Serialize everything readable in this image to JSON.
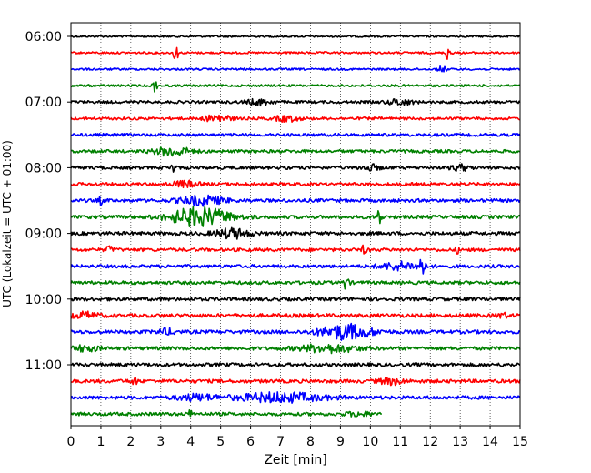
{
  "chart_data": {
    "type": "line",
    "title": "",
    "xlabel": "Zeit  [min]",
    "ylabel": "UTC (Lokalzeit = UTC + 01:00)",
    "xlim": [
      0,
      15
    ],
    "x_ticks": [
      "0",
      "1",
      "2",
      "3",
      "4",
      "5",
      "6",
      "7",
      "8",
      "9",
      "10",
      "11",
      "12",
      "13",
      "14",
      "15"
    ],
    "y_ticks": [
      "06:00",
      "07:00",
      "08:00",
      "09:00",
      "10:00",
      "11:00"
    ],
    "grid": "vertical dotted at each minute",
    "trace_interval_min": 15,
    "color_cycle": [
      "#000000",
      "#ff0000",
      "#0000ff",
      "#008000"
    ],
    "traces": [
      {
        "start": "06:00",
        "baseline": 1.0,
        "events": []
      },
      {
        "start": "06:15",
        "baseline": 1.1,
        "events": [
          {
            "t": 3.5,
            "amp": 9,
            "w": 0.06
          },
          {
            "t": 12.6,
            "amp": 9,
            "w": 0.06
          }
        ]
      },
      {
        "start": "06:30",
        "baseline": 1.1,
        "events": [
          {
            "t": 12.4,
            "amp": 3,
            "w": 0.1
          }
        ]
      },
      {
        "start": "06:45",
        "baseline": 1.2,
        "events": [
          {
            "t": 2.8,
            "amp": 8,
            "w": 0.05
          }
        ]
      },
      {
        "start": "07:00",
        "baseline": 1.5,
        "events": [
          {
            "t": 6.3,
            "amp": 3,
            "w": 0.3
          },
          {
            "t": 11.0,
            "amp": 3,
            "w": 0.3
          }
        ]
      },
      {
        "start": "07:15",
        "baseline": 1.5,
        "events": [
          {
            "t": 4.9,
            "amp": 4,
            "w": 0.3
          },
          {
            "t": 7.2,
            "amp": 3,
            "w": 0.3
          }
        ]
      },
      {
        "start": "07:30",
        "baseline": 1.6,
        "events": []
      },
      {
        "start": "07:45",
        "baseline": 1.7,
        "events": [
          {
            "t": 3.4,
            "amp": 5,
            "w": 0.4
          }
        ]
      },
      {
        "start": "08:00",
        "baseline": 1.8,
        "events": [
          {
            "t": 3.4,
            "amp": 5,
            "w": 0.06
          },
          {
            "t": 10.0,
            "amp": 3,
            "w": 0.2
          },
          {
            "t": 13.0,
            "amp": 3,
            "w": 0.2
          }
        ]
      },
      {
        "start": "08:15",
        "baseline": 1.7,
        "events": [
          {
            "t": 3.8,
            "amp": 3,
            "w": 0.3
          }
        ]
      },
      {
        "start": "08:30",
        "baseline": 1.8,
        "events": [
          {
            "t": 1.0,
            "amp": 4,
            "w": 0.05
          },
          {
            "t": 4.4,
            "amp": 5,
            "w": 0.5
          }
        ]
      },
      {
        "start": "08:45",
        "baseline": 1.9,
        "events": [
          {
            "t": 4.3,
            "amp": 10,
            "w": 0.7
          },
          {
            "t": 10.3,
            "amp": 12,
            "w": 0.05
          }
        ]
      },
      {
        "start": "09:00",
        "baseline": 1.9,
        "events": [
          {
            "t": 5.4,
            "amp": 5,
            "w": 0.4
          }
        ]
      },
      {
        "start": "09:15",
        "baseline": 1.8,
        "events": [
          {
            "t": 1.3,
            "amp": 3,
            "w": 0.1
          },
          {
            "t": 9.8,
            "amp": 6,
            "w": 0.05
          },
          {
            "t": 12.9,
            "amp": 3,
            "w": 0.05
          }
        ]
      },
      {
        "start": "09:30",
        "baseline": 1.8,
        "events": [
          {
            "t": 11.7,
            "amp": 16,
            "w": 0.06
          },
          {
            "t": 11.0,
            "amp": 4,
            "w": 0.5
          }
        ]
      },
      {
        "start": "09:45",
        "baseline": 1.8,
        "events": [
          {
            "t": 9.2,
            "amp": 8,
            "w": 0.06
          }
        ]
      },
      {
        "start": "10:00",
        "baseline": 1.9,
        "events": []
      },
      {
        "start": "10:15",
        "baseline": 2.0,
        "events": [
          {
            "t": 0.5,
            "amp": 3,
            "w": 0.3
          },
          {
            "t": 14.4,
            "amp": 3,
            "w": 0.1
          }
        ]
      },
      {
        "start": "10:30",
        "baseline": 1.9,
        "events": [
          {
            "t": 9.2,
            "amp": 8,
            "w": 0.6
          },
          {
            "t": 3.2,
            "amp": 3,
            "w": 0.2
          }
        ]
      },
      {
        "start": "10:45",
        "baseline": 1.9,
        "events": [
          {
            "t": 8.6,
            "amp": 4,
            "w": 0.7
          },
          {
            "t": 0.5,
            "amp": 3,
            "w": 0.3
          }
        ]
      },
      {
        "start": "11:00",
        "baseline": 1.9,
        "events": []
      },
      {
        "start": "11:15",
        "baseline": 1.9,
        "events": [
          {
            "t": 2.1,
            "amp": 3,
            "w": 0.1
          },
          {
            "t": 10.7,
            "amp": 3,
            "w": 0.3
          }
        ]
      },
      {
        "start": "11:30",
        "baseline": 1.9,
        "events": [
          {
            "t": 7.0,
            "amp": 5,
            "w": 1.0
          },
          {
            "t": 4.2,
            "amp": 3,
            "w": 0.5
          }
        ]
      },
      {
        "start": "11:45",
        "baseline": 1.8,
        "end_min": 10.4,
        "events": [
          {
            "t": 4.0,
            "amp": 4,
            "w": 0.05
          },
          {
            "t": 9.6,
            "amp": 2,
            "w": 0.3
          }
        ]
      }
    ]
  }
}
